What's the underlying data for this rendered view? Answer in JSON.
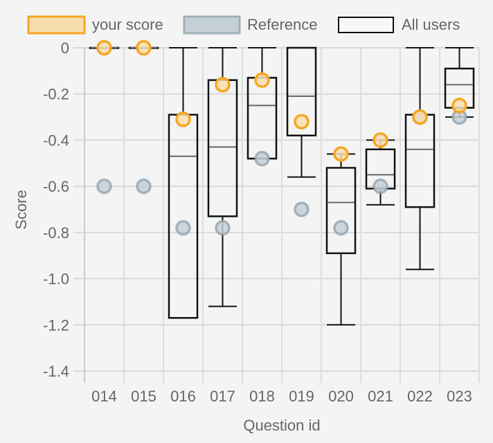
{
  "chart_data": {
    "type": "boxplot",
    "title": "",
    "xlabel": "Question id",
    "ylabel": "Score",
    "ylim": [
      -1.4,
      0
    ],
    "yticks": [
      "0",
      "-0.2",
      "-0.4",
      "-0.6",
      "-0.8",
      "-1.0",
      "-1.2",
      "-1.4"
    ],
    "ytick_values": [
      0,
      -0.2,
      -0.4,
      -0.6,
      -0.8,
      -1.0,
      -1.2,
      -1.4
    ],
    "grid": true,
    "legend_position": "top",
    "categories": [
      "014",
      "015",
      "016",
      "017",
      "018",
      "019",
      "020",
      "021",
      "022",
      "023"
    ],
    "legend": [
      {
        "label": "your score",
        "fill": "#f7deae",
        "stroke": "#f5a623"
      },
      {
        "label": "Reference",
        "fill": "#c5cfd6",
        "stroke": "#9fb0b9"
      },
      {
        "label": "All users",
        "fill": "#f8f8f8",
        "stroke": "#111111"
      }
    ],
    "series": [
      {
        "name": "All users",
        "type": "box",
        "boxes": [
          {
            "min": 0,
            "q1": 0,
            "median": 0,
            "q3": 0,
            "max": 0
          },
          {
            "min": 0,
            "q1": 0,
            "median": 0,
            "q3": 0,
            "max": 0
          },
          {
            "min": -1.17,
            "q1": -1.17,
            "median": -0.47,
            "q3": -0.29,
            "max": 0
          },
          {
            "min": -1.12,
            "q1": -0.73,
            "median": -0.43,
            "q3": -0.14,
            "max": 0
          },
          {
            "min": -0.48,
            "q1": -0.48,
            "median": -0.25,
            "q3": -0.13,
            "max": 0
          },
          {
            "min": -0.56,
            "q1": -0.38,
            "median": -0.21,
            "q3": 0,
            "max": 0
          },
          {
            "min": -1.2,
            "q1": -0.89,
            "median": -0.67,
            "q3": -0.52,
            "max": -0.46
          },
          {
            "min": -0.68,
            "q1": -0.61,
            "median": -0.55,
            "q3": -0.44,
            "max": -0.4
          },
          {
            "min": -0.96,
            "q1": -0.69,
            "median": -0.44,
            "q3": -0.29,
            "max": 0
          },
          {
            "min": -0.3,
            "q1": -0.26,
            "median": -0.16,
            "q3": -0.09,
            "max": 0
          }
        ]
      },
      {
        "name": "Reference",
        "type": "scatter",
        "values": [
          -0.6,
          -0.6,
          -0.78,
          -0.78,
          -0.48,
          -0.7,
          -0.78,
          -0.6,
          -0.3,
          -0.3
        ]
      },
      {
        "name": "your score",
        "type": "scatter",
        "values": [
          0,
          0,
          -0.31,
          -0.16,
          -0.14,
          -0.32,
          -0.46,
          -0.4,
          -0.3,
          -0.25
        ]
      }
    ]
  }
}
